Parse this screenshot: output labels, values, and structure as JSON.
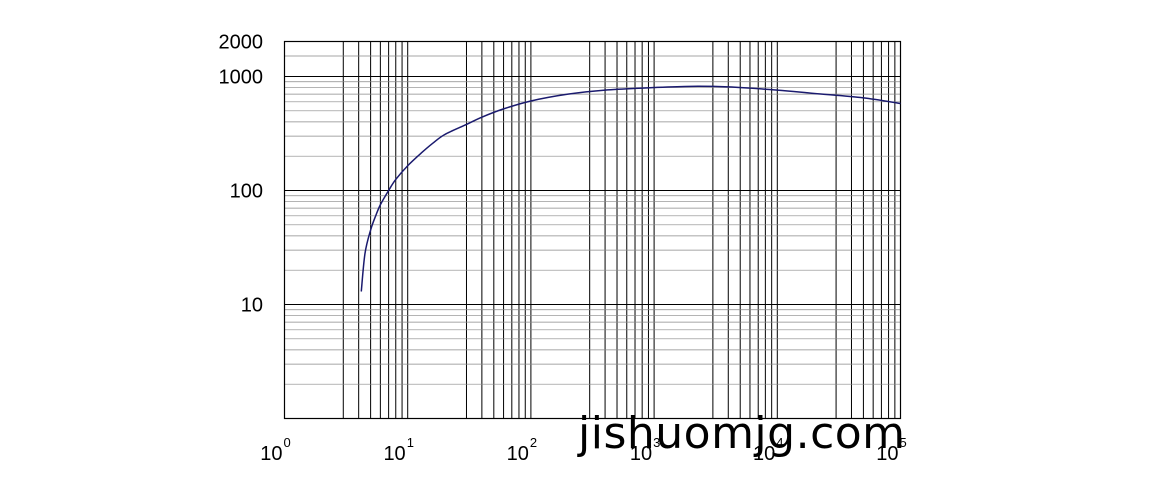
{
  "chart_data": {
    "type": "line",
    "x_scale": "log",
    "y_scale": "log",
    "xlim": [
      1,
      100000
    ],
    "ylim": [
      1,
      2000
    ],
    "grid": true,
    "title": "",
    "xlabel": "",
    "ylabel": "",
    "x_ticks": [
      {
        "base": "10",
        "exp": "0",
        "value": 1
      },
      {
        "base": "10",
        "exp": "1",
        "value": 10
      },
      {
        "base": "10",
        "exp": "2",
        "value": 100
      },
      {
        "base": "10",
        "exp": "3",
        "value": 1000
      },
      {
        "base": "10",
        "exp": "4",
        "value": 10000
      },
      {
        "base": "10",
        "exp": "5",
        "value": 100000
      }
    ],
    "y_ticks": [
      {
        "label": "2000",
        "value": 2000
      },
      {
        "label": "1000",
        "value": 1000
      },
      {
        "label": "100",
        "value": 100
      },
      {
        "label": "10",
        "value": 10
      }
    ],
    "series": [
      {
        "color": "#1a1a6e",
        "x": [
          4.2,
          4.5,
          5,
          5.5,
          6,
          7,
          8,
          10,
          13,
          16,
          20,
          30,
          40,
          60,
          100,
          200,
          400,
          1000,
          2000,
          4000,
          10000,
          20000,
          50000,
          100000
        ],
        "y": [
          13,
          28,
          45,
          60,
          75,
          100,
          125,
          165,
          215,
          260,
          310,
          380,
          440,
          520,
          610,
          700,
          760,
          800,
          820,
          810,
          760,
          710,
          650,
          580
        ]
      }
    ]
  },
  "watermark": "jishuomjg.com"
}
